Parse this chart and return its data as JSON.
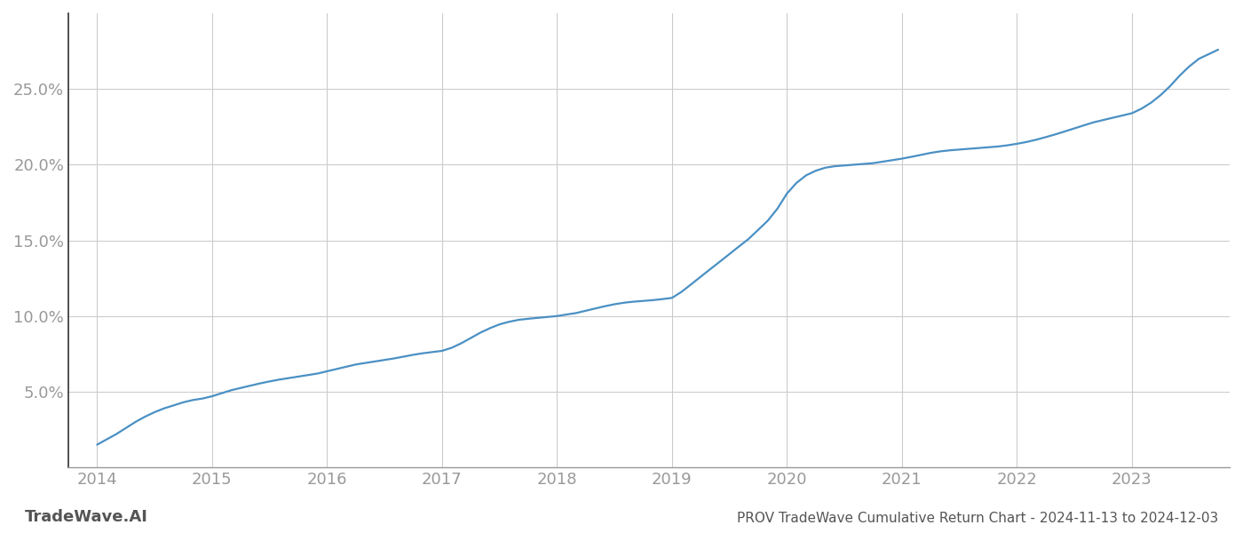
{
  "title": "PROV TradeWave Cumulative Return Chart - 2024-11-13 to 2024-12-03",
  "watermark": "TradeWave.AI",
  "line_color": "#4a90c4",
  "background_color": "#ffffff",
  "grid_color": "#cccccc",
  "x_values": [
    2014.0,
    2014.083,
    2014.167,
    2014.25,
    2014.333,
    2014.417,
    2014.5,
    2014.583,
    2014.667,
    2014.75,
    2014.833,
    2014.917,
    2015.0,
    2015.083,
    2015.167,
    2015.25,
    2015.333,
    2015.417,
    2015.5,
    2015.583,
    2015.667,
    2015.75,
    2015.833,
    2015.917,
    2016.0,
    2016.083,
    2016.167,
    2016.25,
    2016.333,
    2016.417,
    2016.5,
    2016.583,
    2016.667,
    2016.75,
    2016.833,
    2016.917,
    2017.0,
    2017.083,
    2017.167,
    2017.25,
    2017.333,
    2017.417,
    2017.5,
    2017.583,
    2017.667,
    2017.75,
    2017.833,
    2017.917,
    2018.0,
    2018.083,
    2018.167,
    2018.25,
    2018.333,
    2018.417,
    2018.5,
    2018.583,
    2018.667,
    2018.75,
    2018.833,
    2018.917,
    2019.0,
    2019.083,
    2019.167,
    2019.25,
    2019.333,
    2019.417,
    2019.5,
    2019.583,
    2019.667,
    2019.75,
    2019.833,
    2019.917,
    2020.0,
    2020.083,
    2020.167,
    2020.25,
    2020.333,
    2020.417,
    2020.5,
    2020.583,
    2020.667,
    2020.75,
    2020.833,
    2020.917,
    2021.0,
    2021.083,
    2021.167,
    2021.25,
    2021.333,
    2021.417,
    2021.5,
    2021.583,
    2021.667,
    2021.75,
    2021.833,
    2021.917,
    2022.0,
    2022.083,
    2022.167,
    2022.25,
    2022.333,
    2022.417,
    2022.5,
    2022.583,
    2022.667,
    2022.75,
    2022.833,
    2022.917,
    2023.0,
    2023.083,
    2023.167,
    2023.25,
    2023.333,
    2023.417,
    2023.5,
    2023.583,
    2023.667,
    2023.75
  ],
  "y_values": [
    1.5,
    1.85,
    2.2,
    2.6,
    3.0,
    3.35,
    3.65,
    3.9,
    4.1,
    4.3,
    4.45,
    4.55,
    4.7,
    4.9,
    5.1,
    5.25,
    5.4,
    5.55,
    5.68,
    5.8,
    5.9,
    6.0,
    6.1,
    6.2,
    6.35,
    6.5,
    6.65,
    6.8,
    6.9,
    7.0,
    7.1,
    7.2,
    7.32,
    7.44,
    7.54,
    7.62,
    7.7,
    7.9,
    8.2,
    8.55,
    8.9,
    9.2,
    9.45,
    9.62,
    9.75,
    9.82,
    9.88,
    9.94,
    10.0,
    10.1,
    10.2,
    10.35,
    10.5,
    10.65,
    10.78,
    10.88,
    10.95,
    11.0,
    11.05,
    11.12,
    11.2,
    11.6,
    12.1,
    12.6,
    13.1,
    13.6,
    14.1,
    14.6,
    15.1,
    15.7,
    16.3,
    17.1,
    18.1,
    18.8,
    19.3,
    19.6,
    19.8,
    19.9,
    19.95,
    20.0,
    20.05,
    20.1,
    20.2,
    20.3,
    20.4,
    20.52,
    20.65,
    20.78,
    20.88,
    20.95,
    21.0,
    21.05,
    21.1,
    21.15,
    21.2,
    21.28,
    21.38,
    21.5,
    21.65,
    21.82,
    22.0,
    22.2,
    22.4,
    22.6,
    22.8,
    22.95,
    23.1,
    23.25,
    23.4,
    23.7,
    24.1,
    24.6,
    25.2,
    25.9,
    26.5,
    27.0,
    27.3,
    27.6
  ],
  "xticks": [
    2014,
    2015,
    2016,
    2017,
    2018,
    2019,
    2020,
    2021,
    2022,
    2023
  ],
  "yticks": [
    5.0,
    10.0,
    15.0,
    20.0,
    25.0
  ],
  "ylim": [
    0,
    30
  ],
  "xlim": [
    2013.75,
    2023.85
  ],
  "line_width": 1.6,
  "tick_color": "#999999",
  "left_spine_color": "#333333",
  "bottom_spine_color": "#999999",
  "watermark_color": "#555555",
  "title_color": "#555555",
  "title_fontsize": 11,
  "tick_fontsize": 13,
  "watermark_fontsize": 13
}
